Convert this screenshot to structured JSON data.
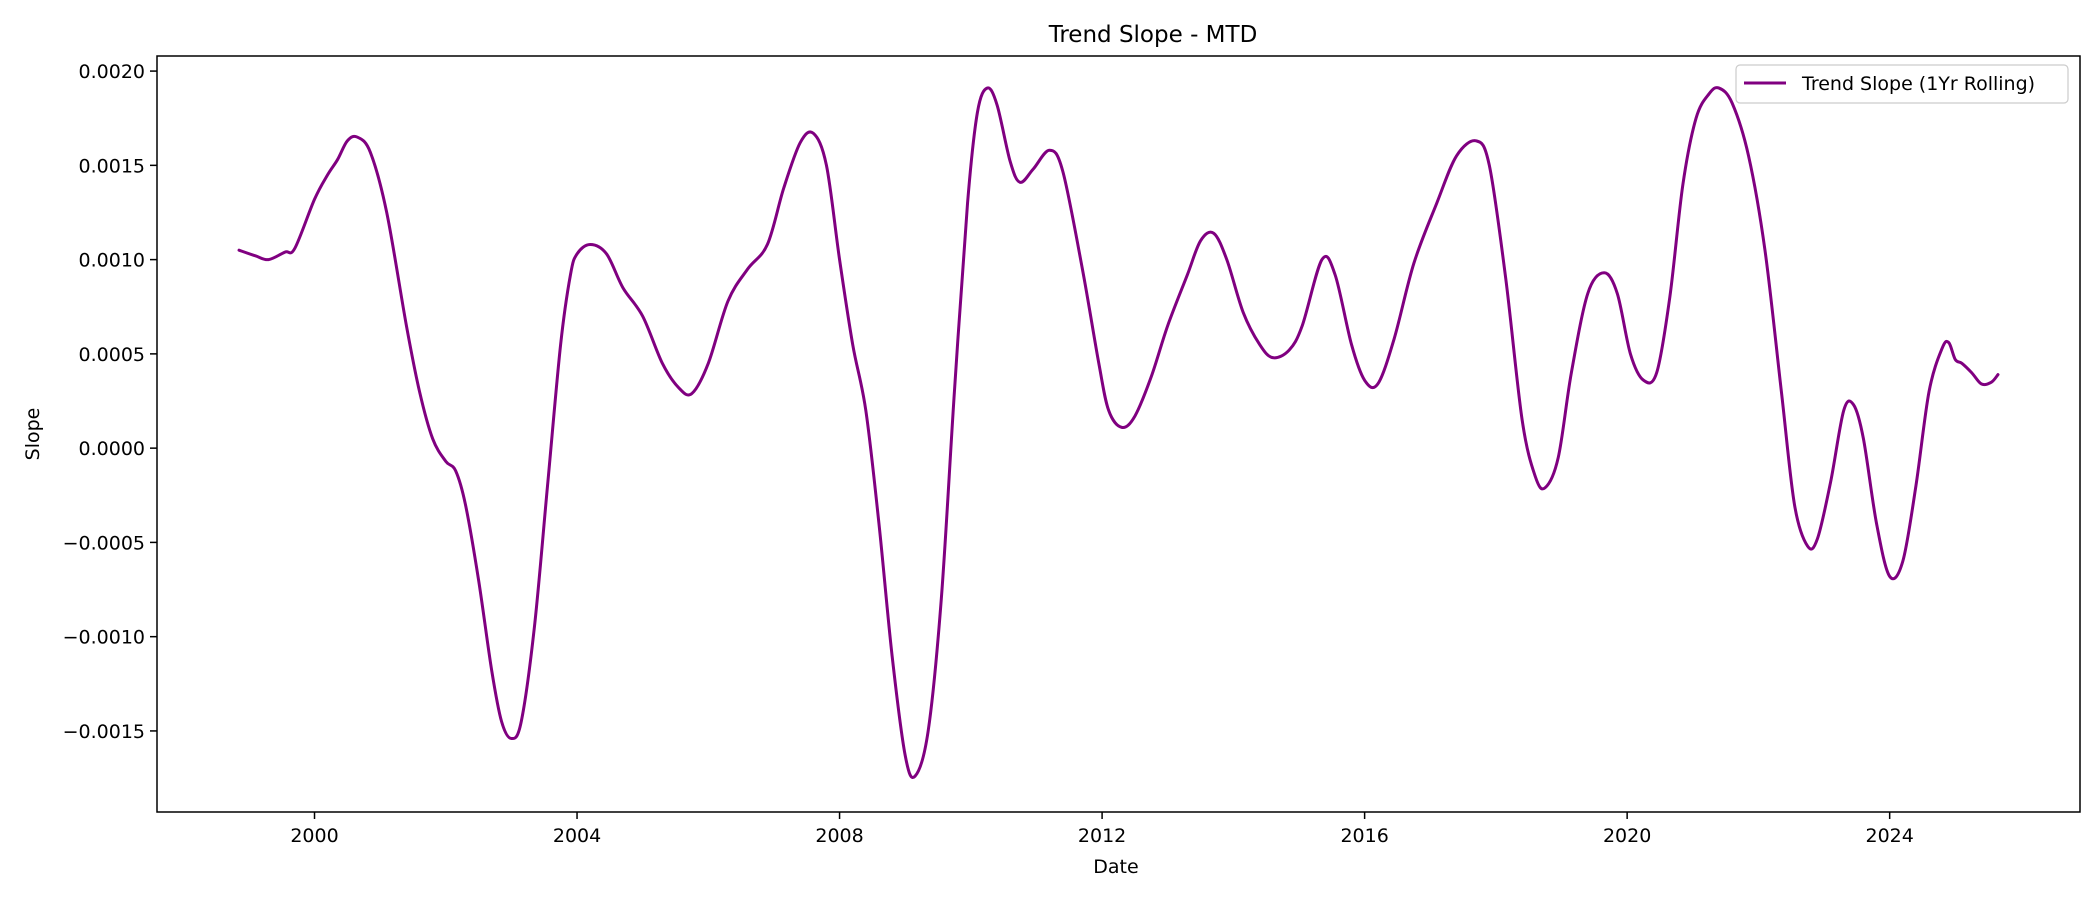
{
  "chart_data": {
    "type": "line",
    "title": "Trend Slope - MTD",
    "xlabel": "Date",
    "ylabel": "Slope",
    "xlim": [
      1997.6,
      2026.9
    ],
    "ylim": [
      -0.00193,
      0.00208
    ],
    "xticks": [
      2000,
      2004,
      2008,
      2012,
      2016,
      2020,
      2024
    ],
    "xtick_labels": [
      "2000",
      "2004",
      "2008",
      "2012",
      "2016",
      "2020",
      "2024"
    ],
    "yticks": [
      -0.0015,
      -0.001,
      -0.0005,
      0.0,
      0.0005,
      0.001,
      0.0015,
      0.002
    ],
    "ytick_labels": [
      "−0.0015",
      "−0.0010",
      "−0.0005",
      "0.0000",
      "0.0005",
      "0.0010",
      "0.0015",
      "0.0020"
    ],
    "grid": false,
    "legend": {
      "placement": "top-right"
    },
    "series": [
      {
        "name": "Trend Slope (1Yr Rolling)",
        "color": "#800080",
        "points": [
          [
            1998.85,
            0.00105
          ],
          [
            1999.1,
            0.00102
          ],
          [
            1999.3,
            0.001
          ],
          [
            1999.55,
            0.00104
          ],
          [
            1999.7,
            0.00106
          ],
          [
            2000.0,
            0.00132
          ],
          [
            2000.2,
            0.00145
          ],
          [
            2000.35,
            0.00153
          ],
          [
            2000.5,
            0.00163
          ],
          [
            2000.65,
            0.00165
          ],
          [
            2000.85,
            0.00157
          ],
          [
            2001.1,
            0.00125
          ],
          [
            2001.4,
            0.00065
          ],
          [
            2001.6,
            0.0003
          ],
          [
            2001.8,
            5e-05
          ],
          [
            2002.0,
            -7e-05
          ],
          [
            2002.15,
            -0.00012
          ],
          [
            2002.3,
            -0.0003
          ],
          [
            2002.5,
            -0.0007
          ],
          [
            2002.7,
            -0.00118
          ],
          [
            2002.85,
            -0.00145
          ],
          [
            2003.0,
            -0.00154
          ],
          [
            2003.15,
            -0.00145
          ],
          [
            2003.35,
            -0.00095
          ],
          [
            2003.55,
            -0.0002
          ],
          [
            2003.75,
            0.00055
          ],
          [
            2003.9,
            0.00092
          ],
          [
            2004.0,
            0.00103
          ],
          [
            2004.2,
            0.00108
          ],
          [
            2004.45,
            0.00103
          ],
          [
            2004.7,
            0.00085
          ],
          [
            2005.0,
            0.0007
          ],
          [
            2005.3,
            0.00045
          ],
          [
            2005.55,
            0.00032
          ],
          [
            2005.75,
            0.00029
          ],
          [
            2006.0,
            0.00045
          ],
          [
            2006.3,
            0.00078
          ],
          [
            2006.6,
            0.00095
          ],
          [
            2006.9,
            0.00108
          ],
          [
            2007.15,
            0.00138
          ],
          [
            2007.4,
            0.00162
          ],
          [
            2007.6,
            0.00167
          ],
          [
            2007.8,
            0.0015
          ],
          [
            2008.0,
            0.001
          ],
          [
            2008.2,
            0.00055
          ],
          [
            2008.4,
            0.0002
          ],
          [
            2008.6,
            -0.0004
          ],
          [
            2008.8,
            -0.0011
          ],
          [
            2009.0,
            -0.00163
          ],
          [
            2009.15,
            -0.00174
          ],
          [
            2009.35,
            -0.0015
          ],
          [
            2009.55,
            -0.0008
          ],
          [
            2009.75,
            0.0003
          ],
          [
            2009.95,
            0.0013
          ],
          [
            2010.1,
            0.00178
          ],
          [
            2010.25,
            0.00191
          ],
          [
            2010.4,
            0.00182
          ],
          [
            2010.6,
            0.00152
          ],
          [
            2010.75,
            0.00141
          ],
          [
            2010.95,
            0.00148
          ],
          [
            2011.2,
            0.00158
          ],
          [
            2011.4,
            0.00147
          ],
          [
            2011.7,
            0.00095
          ],
          [
            2011.95,
            0.00045
          ],
          [
            2012.1,
            0.0002
          ],
          [
            2012.3,
            0.00011
          ],
          [
            2012.5,
            0.00017
          ],
          [
            2012.75,
            0.00038
          ],
          [
            2013.0,
            0.00065
          ],
          [
            2013.3,
            0.00092
          ],
          [
            2013.5,
            0.0011
          ],
          [
            2013.7,
            0.00114
          ],
          [
            2013.9,
            0.001
          ],
          [
            2014.15,
            0.00072
          ],
          [
            2014.4,
            0.00055
          ],
          [
            2014.6,
            0.00048
          ],
          [
            2014.85,
            0.00052
          ],
          [
            2015.05,
            0.00065
          ],
          [
            2015.35,
            0.001
          ],
          [
            2015.55,
            0.00092
          ],
          [
            2015.8,
            0.00055
          ],
          [
            2016.0,
            0.00036
          ],
          [
            2016.2,
            0.00034
          ],
          [
            2016.45,
            0.00058
          ],
          [
            2016.75,
            0.00098
          ],
          [
            2017.1,
            0.0013
          ],
          [
            2017.4,
            0.00155
          ],
          [
            2017.7,
            0.00163
          ],
          [
            2017.9,
            0.0015
          ],
          [
            2018.15,
            0.0009
          ],
          [
            2018.4,
            0.00015
          ],
          [
            2018.6,
            -0.00015
          ],
          [
            2018.75,
            -0.00021
          ],
          [
            2018.95,
            -5e-05
          ],
          [
            2019.15,
            0.0004
          ],
          [
            2019.4,
            0.00082
          ],
          [
            2019.65,
            0.00093
          ],
          [
            2019.85,
            0.00082
          ],
          [
            2020.05,
            0.0005
          ],
          [
            2020.25,
            0.00036
          ],
          [
            2020.45,
            0.0004
          ],
          [
            2020.65,
            0.0008
          ],
          [
            2020.85,
            0.0014
          ],
          [
            2021.05,
            0.00175
          ],
          [
            2021.25,
            0.00188
          ],
          [
            2021.4,
            0.00191
          ],
          [
            2021.6,
            0.00183
          ],
          [
            2021.85,
            0.00155
          ],
          [
            2022.1,
            0.00105
          ],
          [
            2022.35,
            0.0003
          ],
          [
            2022.55,
            -0.0003
          ],
          [
            2022.75,
            -0.00052
          ],
          [
            2022.9,
            -0.00048
          ],
          [
            2023.1,
            -0.00018
          ],
          [
            2023.3,
            0.0002
          ],
          [
            2023.45,
            0.00023
          ],
          [
            2023.6,
            5e-05
          ],
          [
            2023.8,
            -0.0004
          ],
          [
            2024.0,
            -0.00068
          ],
          [
            2024.2,
            -0.0006
          ],
          [
            2024.4,
            -0.0002
          ],
          [
            2024.6,
            0.0003
          ],
          [
            2024.8,
            0.00053
          ],
          [
            2024.9,
            0.00056
          ],
          [
            2025.0,
            0.00047
          ],
          [
            2025.1,
            0.00045
          ],
          [
            2025.25,
            0.0004
          ],
          [
            2025.4,
            0.00034
          ],
          [
            2025.55,
            0.00035
          ],
          [
            2025.65,
            0.00039
          ]
        ]
      }
    ]
  }
}
